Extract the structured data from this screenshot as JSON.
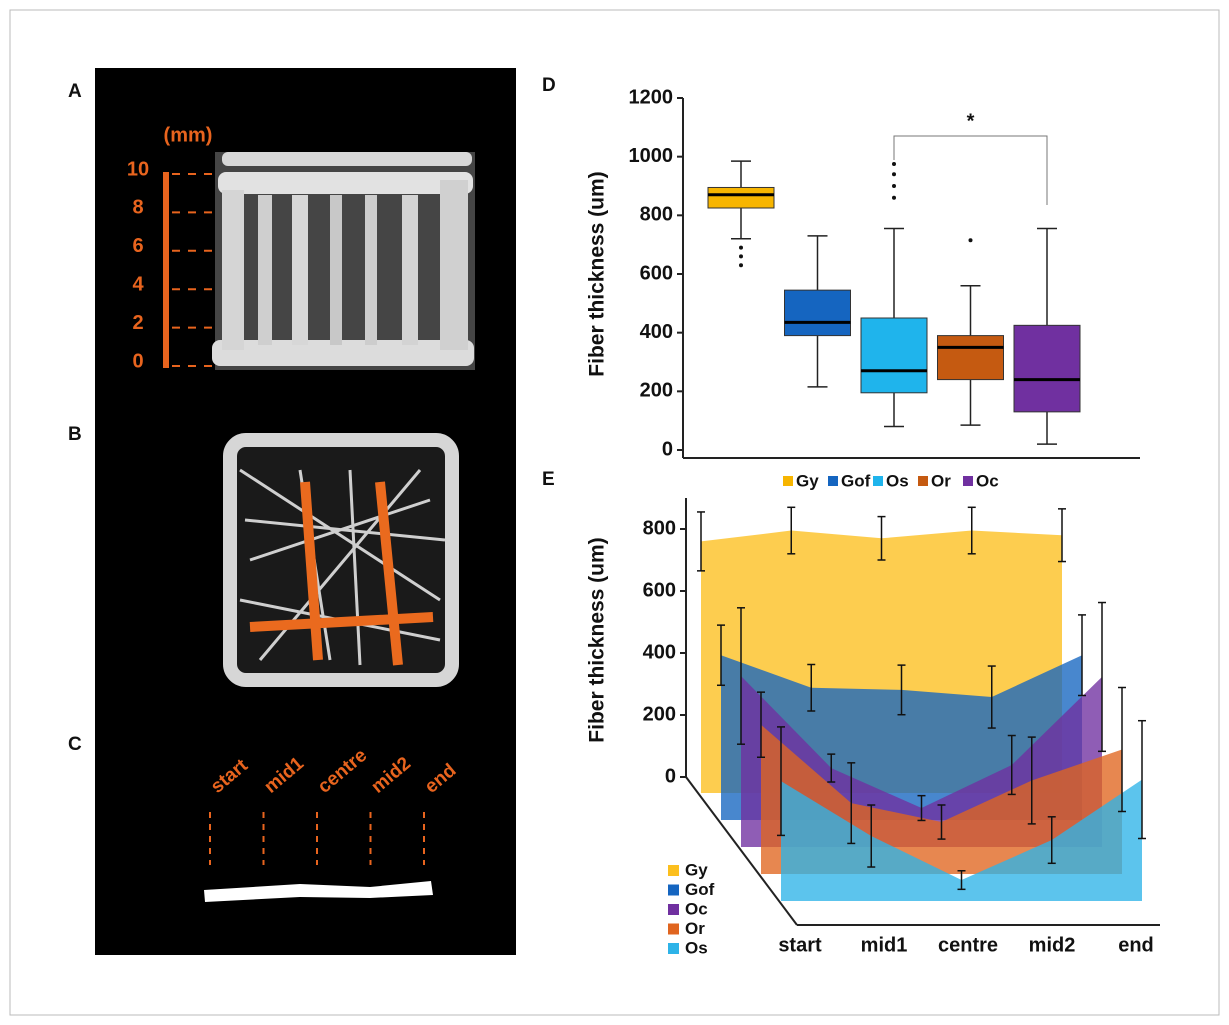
{
  "panels": {
    "A": {
      "label": "A",
      "unit": "(mm)",
      "scale": [
        10,
        8,
        6,
        4,
        2,
        0
      ]
    },
    "B": {
      "label": "B"
    },
    "C": {
      "label": "C",
      "positions": [
        "start",
        "mid1",
        "centre",
        "mid2",
        "end"
      ]
    },
    "D": {
      "label": "D"
    },
    "E": {
      "label": "E"
    }
  },
  "chart_data": [
    {
      "type": "box",
      "ylabel": "Fiber thickness (um)",
      "annotation": "*",
      "categories": [
        "Gy",
        "Gof",
        "Os",
        "Or",
        "Oc"
      ],
      "colors": [
        "#f7b500",
        "#1565c0",
        "#1fb4ec",
        "#c55a11",
        "#7030a0"
      ],
      "boxes": [
        {
          "low": 720,
          "q1": 825,
          "median": 870,
          "q3": 895,
          "high": 985,
          "outliers": [
            690,
            660,
            630
          ]
        },
        {
          "low": 215,
          "q1": 390,
          "median": 435,
          "q3": 545,
          "high": 730,
          "outliers": []
        },
        {
          "low": 80,
          "q1": 195,
          "median": 270,
          "q3": 450,
          "high": 755,
          "outliers": [
            860,
            900,
            940,
            975
          ]
        },
        {
          "low": 85,
          "q1": 240,
          "median": 350,
          "q3": 390,
          "high": 560,
          "outliers": [
            715
          ]
        },
        {
          "low": 20,
          "q1": 130,
          "median": 240,
          "q3": 425,
          "high": 755,
          "outliers": []
        }
      ],
      "ylim": [
        0,
        1200
      ],
      "yticks": [
        0,
        200,
        400,
        600,
        800,
        1000,
        1200
      ]
    },
    {
      "type": "area",
      "ylabel": "Fiber thickness (um)",
      "categories": [
        "start",
        "mid1",
        "centre",
        "mid2",
        "end"
      ],
      "series": [
        {
          "name": "Gy",
          "color": "#fcbf1e",
          "values": [
            760,
            795,
            770,
            795,
            780
          ],
          "errors": [
            95,
            75,
            70,
            75,
            85
          ]
        },
        {
          "name": "Gof",
          "color": "#1565c0",
          "values": [
            480,
            375,
            368,
            345,
            480
          ],
          "errors": [
            97,
            75,
            80,
            100,
            130
          ]
        },
        {
          "name": "Oc",
          "color": "#7030a0",
          "values": [
            500,
            203,
            74,
            213,
            497
          ],
          "errors": [
            220,
            45,
            40,
            95,
            240
          ]
        },
        {
          "name": "Or",
          "color": "#e0651f",
          "values": [
            430,
            177,
            116,
            250,
            350
          ],
          "errors": [
            105,
            130,
            55,
            140,
            200
          ]
        },
        {
          "name": "Os",
          "color": "#2eb3e8",
          "values": [
            335,
            158,
            16,
            145,
            340
          ],
          "errors": [
            175,
            100,
            30,
            75,
            190
          ]
        }
      ],
      "ylim": [
        0,
        900
      ],
      "yticks": [
        0,
        200,
        400,
        600,
        800
      ]
    }
  ]
}
